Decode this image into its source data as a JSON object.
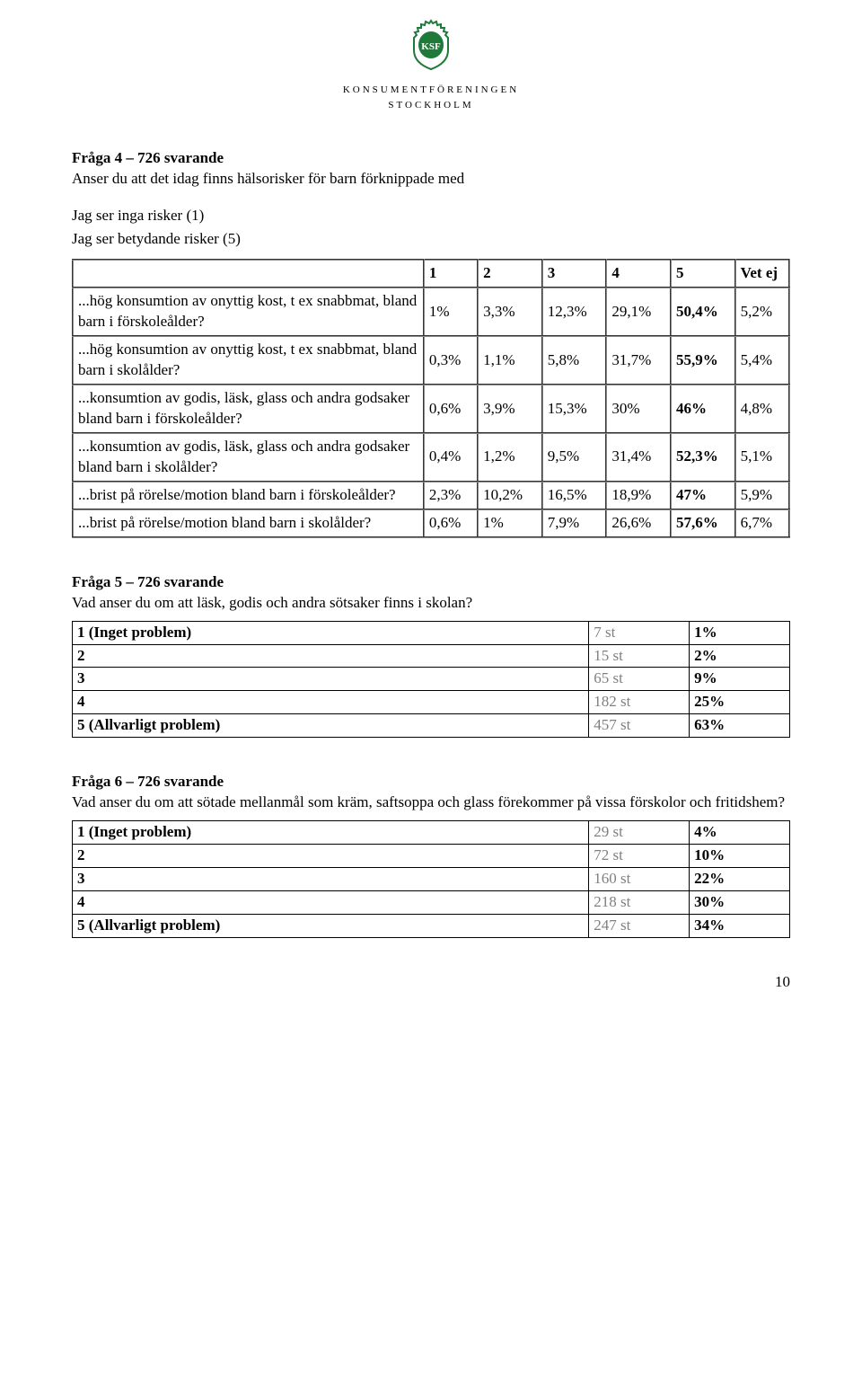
{
  "logo": {
    "initials": "KSF",
    "org_line": "KONSUMENTFÖRENINGEN",
    "city_line": "STOCKHOLM",
    "green": "#1f7a3a",
    "outline": "#000000"
  },
  "q4": {
    "title": "Fråga 4 – 726 svarande",
    "text": "Anser du att det idag finns hälsorisker för barn förknippade med",
    "scale_low": "Jag ser inga risker (1)",
    "scale_high": "Jag ser betydande risker (5)",
    "headers": [
      "1",
      "2",
      "3",
      "4",
      "5",
      "Vet ej"
    ],
    "rows": [
      {
        "label": "...hög konsumtion av onyttig kost, t ex snabbmat, bland barn i förskoleålder?",
        "cells": [
          "1%",
          "3,3%",
          "12,3%",
          "29,1%",
          "50,4%",
          "5,2%"
        ],
        "bold_idx": 4
      },
      {
        "label": "...hög konsumtion av onyttig kost, t ex snabbmat, bland barn i skolålder?",
        "cells": [
          "0,3%",
          "1,1%",
          "5,8%",
          "31,7%",
          "55,9%",
          "5,4%"
        ],
        "bold_idx": 4
      },
      {
        "label": "...konsumtion av godis, läsk, glass och andra godsaker bland barn i förskoleålder?",
        "cells": [
          "0,6%",
          "3,9%",
          "15,3%",
          "30%",
          "46%",
          "4,8%"
        ],
        "bold_idx": 4
      },
      {
        "label": "...konsumtion av godis, läsk, glass och andra godsaker bland barn i skolålder?",
        "cells": [
          "0,4%",
          "1,2%",
          "9,5%",
          "31,4%",
          "52,3%",
          "5,1%"
        ],
        "bold_idx": 4
      },
      {
        "label": "...brist på rörelse/motion bland barn i förskoleålder?",
        "cells": [
          "2,3%",
          "10,2%",
          "16,5%",
          "18,9%",
          "47%",
          "5,9%"
        ],
        "bold_idx": 4
      },
      {
        "label": "...brist på rörelse/motion bland barn i skolålder?",
        "cells": [
          "0,6%",
          "1%",
          "7,9%",
          "26,6%",
          "57,6%",
          "6,7%"
        ],
        "bold_idx": 4
      }
    ]
  },
  "q5": {
    "title": "Fråga 5 – 726 svarande",
    "text": "Vad anser du om att läsk, godis och andra sötsaker finns i skolan?",
    "rows": [
      {
        "label": "1 (Inget problem)",
        "st": "7 st",
        "pct": "1%"
      },
      {
        "label": "2",
        "st": "15 st",
        "pct": "2%"
      },
      {
        "label": "3",
        "st": "65 st",
        "pct": "9%"
      },
      {
        "label": "4",
        "st": "182 st",
        "pct": "25%"
      },
      {
        "label": "5 (Allvarligt problem)",
        "st": "457 st",
        "pct": "63%"
      }
    ]
  },
  "q6": {
    "title": "Fråga 6 – 726 svarande",
    "text": "Vad anser du om att sötade mellanmål som kräm, saftsoppa och glass förekommer på vissa förskolor och fritidshem?",
    "rows": [
      {
        "label": "1 (Inget problem)",
        "st": "29 st",
        "pct": "4%"
      },
      {
        "label": "2",
        "st": "72 st",
        "pct": "10%"
      },
      {
        "label": "3",
        "st": "160 st",
        "pct": "22%"
      },
      {
        "label": "4",
        "st": "218 st",
        "pct": "30%"
      },
      {
        "label": "5 (Allvarligt problem)",
        "st": "247 st",
        "pct": "34%"
      }
    ]
  },
  "page_number": "10"
}
